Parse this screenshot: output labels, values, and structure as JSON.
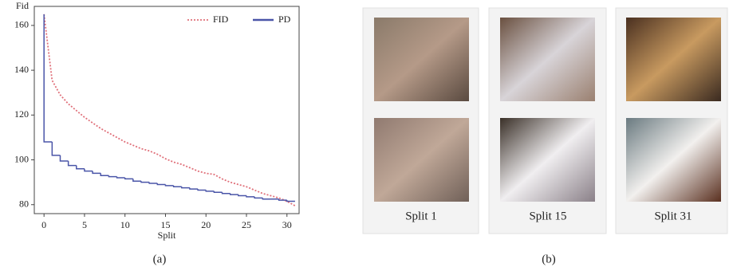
{
  "chart_data": {
    "type": "line",
    "ylabel": "Fid",
    "xlabel": "Split",
    "caption": "(a)",
    "x": [
      0,
      1,
      2,
      3,
      4,
      5,
      6,
      7,
      8,
      9,
      10,
      11,
      12,
      13,
      14,
      15,
      16,
      17,
      18,
      19,
      20,
      21,
      22,
      23,
      24,
      25,
      26,
      27,
      28,
      29,
      30,
      31
    ],
    "series": [
      {
        "name": "FID",
        "color": "#e0707a",
        "style": "dotted",
        "values": [
          165,
          135.5,
          129,
          125,
          122,
          119,
          116.5,
          114,
          112,
          110,
          108,
          106.5,
          105,
          104,
          102.5,
          100.5,
          99,
          98,
          96.5,
          95,
          94,
          93.5,
          91.5,
          90,
          89,
          88,
          86.5,
          85,
          84,
          83,
          81.5,
          79.5
        ]
      },
      {
        "name": "PD",
        "color": "#4a55a8",
        "style": "step",
        "values": [
          165,
          108,
          102,
          99.5,
          97.5,
          96,
          95,
          94,
          93,
          92.5,
          92,
          91.5,
          90.5,
          90,
          89.5,
          89,
          88.5,
          88,
          87.5,
          87,
          86.5,
          86,
          85.5,
          85,
          84.5,
          84,
          83.5,
          83,
          82.5,
          82.5,
          82,
          81.5
        ]
      }
    ],
    "xlim": [
      -1.2,
      31.5
    ],
    "ylim": [
      76,
      168.5
    ],
    "xticks": [
      0,
      5,
      10,
      15,
      20,
      25,
      30
    ],
    "yticks": [
      80,
      100,
      120,
      140,
      160
    ],
    "grid": false,
    "legend": "upper right"
  },
  "panel_b": {
    "caption": "(b)",
    "columns": [
      {
        "label": "Split 1"
      },
      {
        "label": "Split 15"
      },
      {
        "label": "Split 31"
      }
    ]
  }
}
